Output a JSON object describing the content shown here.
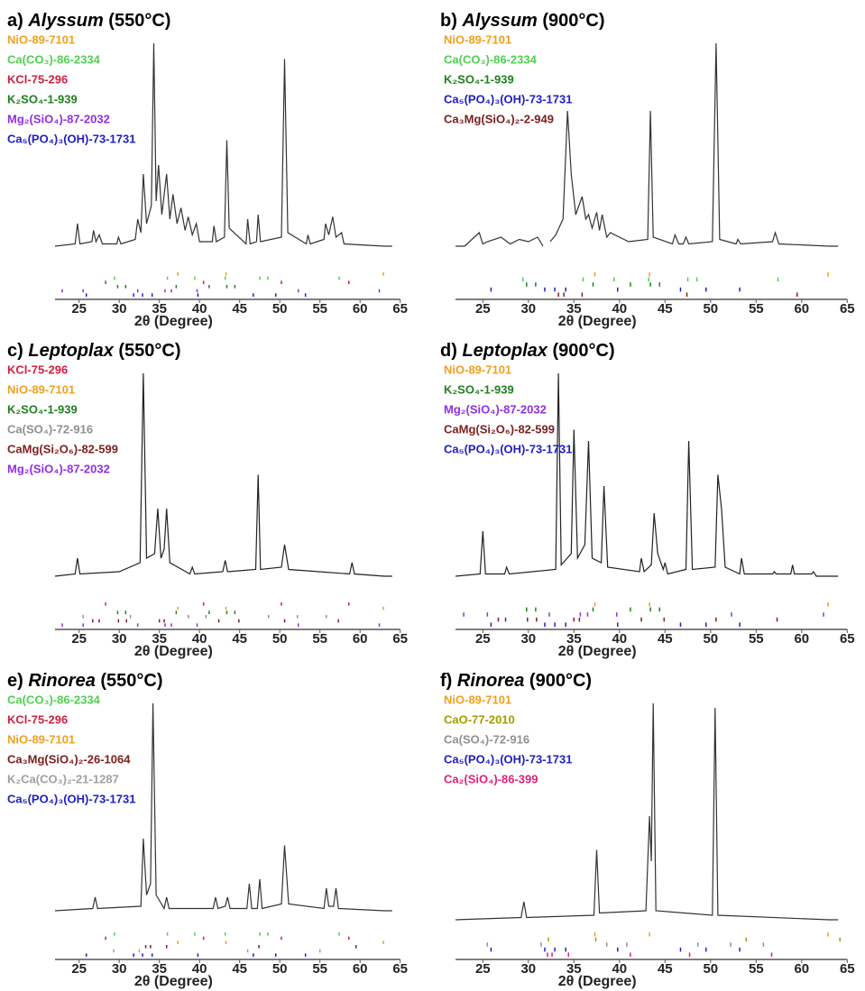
{
  "chart_data": [
    {
      "type": "line",
      "label": "a)",
      "species": "Alyssum",
      "temperature": "(550°C)",
      "xlabel": "2θ (Degree)",
      "xlim": [
        22,
        65
      ],
      "xticks": [
        25,
        30,
        35,
        40,
        45,
        50,
        55,
        60,
        65
      ],
      "ylim": [
        0,
        100
      ],
      "legend": "upper left",
      "pattern": {
        "color": "#333333",
        "x": [
          22,
          24.5,
          24.8,
          25.1,
          26.6,
          26.8,
          27.1,
          27.5,
          27.9,
          29.7,
          29.9,
          30.2,
          32,
          32.3,
          32.7,
          33,
          33.4,
          34,
          34.3,
          34.6,
          34.9,
          35.3,
          35.9,
          36.3,
          36.7,
          37.2,
          37.7,
          38.2,
          38.6,
          39.1,
          39.6,
          40,
          41.6,
          41.8,
          42.1,
          43.1,
          43.4,
          43.7,
          45.8,
          46,
          46.3,
          47.1,
          47.3,
          47.6,
          50.2,
          50.6,
          51,
          53.3,
          53.5,
          53.8,
          55.5,
          55.7,
          56.1,
          56.6,
          57,
          57.7,
          58,
          63,
          64
        ],
        "values": [
          10,
          11,
          20,
          11,
          12,
          17,
          12,
          15,
          11,
          11,
          14,
          11,
          13,
          22,
          16,
          42,
          20,
          28,
          100,
          30,
          46,
          24,
          42,
          22,
          33,
          20,
          27,
          17,
          23,
          15,
          20,
          12,
          12,
          19,
          12,
          14,
          57,
          18,
          11,
          22,
          11,
          12,
          24,
          12,
          14,
          93,
          16,
          11,
          15,
          11,
          13,
          20,
          15,
          23,
          14,
          16,
          11,
          10,
          10
        ]
      },
      "phases": [
        {
          "name": "NiO-89-7101",
          "color": "#f0a020",
          "positions": [
            37.3,
            43.3,
            62.9
          ]
        },
        {
          "name": "Ca(CO₃)-86-2334",
          "color": "#50d050",
          "positions": [
            29.4,
            36,
            39.4,
            43.2,
            47.5,
            48.5,
            57.4
          ]
        },
        {
          "name": "KCl-75-296",
          "color": "#d02040",
          "positions": [
            28.3,
            40.5,
            50.2,
            58.6
          ]
        },
        {
          "name": "K₂SO₄-1-939",
          "color": "#208020",
          "positions": [
            29.8,
            30.8,
            37.1,
            41.2,
            43.4,
            44.4
          ]
        },
        {
          "name": "Mg₂(SiO₄)-87-2032",
          "color": "#9030e0",
          "positions": [
            22.9,
            25.5,
            32.3,
            35.7,
            36.5,
            39.7,
            52.3,
            62.4
          ]
        },
        {
          "name": "Ca₅(PO₄)₃(OH)-73-1731",
          "color": "#2020c0",
          "positions": [
            25.9,
            31.8,
            32.9,
            34.1,
            39.8,
            46.7,
            49.5,
            53.2
          ]
        }
      ]
    },
    {
      "type": "line",
      "label": "b)",
      "species": "Alyssum",
      "temperature": "(900°C)",
      "xlabel": "2θ (Degree)",
      "xlim": [
        22,
        65
      ],
      "xticks": [
        25,
        30,
        35,
        40,
        45,
        50,
        55,
        60,
        65
      ],
      "ylim": [
        0,
        100
      ],
      "legend": "upper left",
      "pattern": {
        "color": "#333333",
        "x": [
          22,
          23,
          24.6,
          25,
          25.5,
          27,
          28,
          29,
          30,
          31,
          31.6,
          32,
          32.4,
          33,
          33.8,
          34.3,
          34.7,
          35.2,
          35.9,
          36.3,
          36.6,
          37,
          37.5,
          37.8,
          38.1,
          38.6,
          39,
          41,
          43.1,
          43.4,
          43.7,
          45.8,
          46.1,
          46.5,
          47,
          47.3,
          47.6,
          50.2,
          50.6,
          51,
          52.8,
          53,
          53.3,
          56.8,
          57.1,
          57.5,
          63,
          64
        ],
        "values": [
          10,
          10,
          16,
          11,
          12,
          14,
          11,
          13,
          12,
          14,
          10,
          null,
          12,
          15,
          22,
          70,
          42,
          24,
          32,
          22,
          24,
          18,
          25,
          17,
          24,
          14,
          16,
          12,
          13,
          70,
          14,
          11,
          15,
          11,
          11,
          14,
          11,
          12,
          100,
          13,
          11,
          13,
          11,
          12,
          16,
          11,
          10,
          10
        ]
      },
      "phases": [
        {
          "name": "NiO-89-7101",
          "color": "#f0a020",
          "positions": [
            37.3,
            43.3,
            62.9
          ]
        },
        {
          "name": "Ca(CO₃)-86-2334",
          "color": "#50d050",
          "positions": [
            29.4,
            36,
            39.4,
            43.2,
            47.5,
            48.5,
            57.4
          ]
        },
        {
          "name": "K₂SO₄-1-939",
          "color": "#208020",
          "positions": [
            29.8,
            30.8,
            37.1,
            41.2,
            43.4,
            44.4
          ]
        },
        {
          "name": "Ca₅(PO₄)₃(OH)-73-1731",
          "color": "#2020c0",
          "positions": [
            25.9,
            31.8,
            32.9,
            34.1,
            39.8,
            46.7,
            49.5,
            53.2
          ]
        },
        {
          "name": "Ca₃Mg(SiO₄)₂-2-949",
          "color": "#7a2020",
          "positions": [
            33.3,
            33.9,
            35.9,
            47.4,
            59.5
          ]
        }
      ]
    },
    {
      "type": "line",
      "label": "c)",
      "species": "Leptoplax",
      "temperature": "(550°C)",
      "xlabel": "2θ (Degree)",
      "xlim": [
        22,
        65
      ],
      "xticks": [
        25,
        30,
        35,
        40,
        45,
        50,
        55,
        60,
        65
      ],
      "ylim": [
        0,
        100
      ],
      "legend": "upper left",
      "pattern": {
        "color": "#222222",
        "x": [
          22,
          24.5,
          24.8,
          25.1,
          30,
          32.6,
          33,
          33.4,
          34.4,
          34.8,
          35.2,
          35.6,
          35.9,
          36.3,
          38.8,
          39.1,
          39.4,
          42.9,
          43.2,
          43.5,
          47,
          47.3,
          47.6,
          50.2,
          50.6,
          51.1,
          58.7,
          59,
          59.3,
          63,
          64
        ],
        "values": [
          10,
          11,
          18,
          11,
          12,
          16,
          100,
          18,
          20,
          40,
          18,
          22,
          40,
          16,
          11,
          14,
          11,
          12,
          17,
          12,
          13,
          55,
          13,
          14,
          24,
          13,
          11,
          16,
          11,
          10,
          10
        ]
      },
      "phases": [
        {
          "name": "KCl-75-296",
          "color": "#d02040",
          "positions": [
            28.3,
            40.5,
            50.2,
            58.6
          ]
        },
        {
          "name": "NiO-89-7101",
          "color": "#f0a020",
          "positions": [
            37.3,
            43.3,
            62.9
          ]
        },
        {
          "name": "K₂SO₄-1-939",
          "color": "#208020",
          "positions": [
            29.8,
            30.8,
            37.1,
            41.2,
            43.4,
            44.4
          ]
        },
        {
          "name": "Ca(SO₄)-72-916",
          "color": "#909090",
          "positions": [
            25.5,
            31.4,
            38.6,
            40.8,
            48.6,
            52.2,
            55.8
          ]
        },
        {
          "name": "CaMg(Si₂O₆)-82-599",
          "color": "#802020",
          "positions": [
            26.7,
            27.5,
            29.9,
            30.9,
            35,
            35.6,
            42.4,
            44.9,
            50.6,
            57.3
          ]
        },
        {
          "name": "Mg₂(SiO₄)-87-2032",
          "color": "#9030e0",
          "positions": [
            22.9,
            25.5,
            32.3,
            35.7,
            36.5,
            39.7,
            52.3,
            62.4
          ]
        }
      ]
    },
    {
      "type": "line",
      "label": "d)",
      "species": "Leptoplax",
      "temperature": "(900°C)",
      "xlabel": "2θ (Degree)",
      "xlim": [
        22,
        65
      ],
      "xticks": [
        25,
        30,
        35,
        40,
        45,
        50,
        55,
        60,
        65
      ],
      "ylim": [
        0,
        100
      ],
      "legend": "upper left",
      "pattern": {
        "color": "#222222",
        "x": [
          22,
          24.7,
          25,
          25.3,
          27.4,
          27.6,
          27.9,
          33,
          33.3,
          33.6,
          34.7,
          35,
          35.4,
          36.2,
          36.6,
          37,
          38,
          38.3,
          38.7,
          42.2,
          42.4,
          42.7,
          43.5,
          43.8,
          44.2,
          44.8,
          45,
          45.3,
          47.3,
          47.6,
          48,
          50.5,
          50.8,
          51.2,
          51.6,
          53.2,
          53.4,
          53.7,
          56.8,
          57,
          57.2,
          58.8,
          59,
          59.2,
          61.1,
          61.3,
          61.6,
          63,
          64
        ],
        "values": [
          10,
          11,
          30,
          11,
          11,
          14,
          11,
          13,
          100,
          15,
          20,
          75,
          18,
          24,
          70,
          18,
          16,
          50,
          14,
          12,
          18,
          12,
          15,
          38,
          20,
          13,
          16,
          11,
          13,
          70,
          13,
          14,
          55,
          40,
          14,
          11,
          18,
          11,
          11,
          12,
          11,
          11,
          15,
          11,
          11,
          12,
          10,
          10,
          10
        ]
      },
      "phases": [
        {
          "name": "NiO-89-7101",
          "color": "#f0a020",
          "positions": [
            37.3,
            43.3,
            62.9
          ]
        },
        {
          "name": "K₂SO₄-1-939",
          "color": "#208020",
          "positions": [
            29.8,
            30.8,
            37.1,
            41.2,
            43.4,
            44.4
          ]
        },
        {
          "name": "Mg₂(SiO₄)-87-2032",
          "color": "#9030e0",
          "positions": [
            22.9,
            25.5,
            32.3,
            35.7,
            36.5,
            39.7,
            52.3,
            62.4
          ]
        },
        {
          "name": "CaMg(Si₂O₆)-82-599",
          "color": "#802020",
          "positions": [
            26.7,
            27.5,
            29.9,
            30.9,
            35,
            35.6,
            42.4,
            44.9,
            50.6,
            57.3
          ]
        },
        {
          "name": "Ca₅(PO₄)₃(OH)-73-1731",
          "color": "#2020c0",
          "positions": [
            25.9,
            31.8,
            32.9,
            34.1,
            39.8,
            46.7,
            49.5,
            53.2
          ]
        }
      ]
    },
    {
      "type": "line",
      "label": "e)",
      "species": "Rinorea",
      "temperature": "(550°C)",
      "xlabel": "2θ (Degree)",
      "xlim": [
        22,
        65
      ],
      "xticks": [
        25,
        30,
        35,
        40,
        45,
        50,
        55,
        60,
        65
      ],
      "ylim": [
        0,
        100
      ],
      "legend": "upper left",
      "pattern": {
        "color": "#333333",
        "x": [
          22,
          26.7,
          27,
          27.3,
          32.7,
          33,
          33.4,
          33.9,
          34.2,
          34.6,
          35.6,
          35.9,
          36.2,
          41.7,
          42,
          42.3,
          43.2,
          43.5,
          43.8,
          45.9,
          46.2,
          46.5,
          47.2,
          47.5,
          47.8,
          50.2,
          50.6,
          51.1,
          55.5,
          55.8,
          56.1,
          56.7,
          57,
          57.3,
          63,
          64
        ],
        "values": [
          8,
          9,
          14,
          9,
          10,
          40,
          15,
          20,
          100,
          15,
          9,
          14,
          9,
          9,
          14,
          9,
          10,
          14,
          9,
          9,
          20,
          9,
          9,
          22,
          9,
          11,
          37,
          11,
          9,
          18,
          10,
          10,
          18,
          9,
          8,
          8
        ]
      },
      "phases": [
        {
          "name": "Ca(CO₃)-86-2334",
          "color": "#50d050",
          "positions": [
            29.4,
            36,
            39.4,
            43.2,
            47.5,
            48.5,
            57.4
          ]
        },
        {
          "name": "KCl-75-296",
          "color": "#d02040",
          "positions": [
            28.3,
            40.5,
            50.2,
            58.6
          ]
        },
        {
          "name": "NiO-89-7101",
          "color": "#f0a020",
          "positions": [
            37.3,
            43.3,
            62.9
          ]
        },
        {
          "name": "Ca₃Mg(SiO₄)₂-26-1064",
          "color": "#7a2020",
          "positions": [
            33.3,
            33.9,
            35.9,
            47.4,
            59.5
          ]
        },
        {
          "name": "K₂Ca(CO₃)₂-21-1287",
          "color": "#a0a0a0",
          "positions": [
            29.3,
            32.5,
            46,
            55
          ]
        },
        {
          "name": "Ca₅(PO₄)₃(OH)-73-1731",
          "color": "#2020c0",
          "positions": [
            25.9,
            31.8,
            32.9,
            34.1,
            39.8,
            46.7,
            49.5,
            53.2
          ]
        }
      ]
    },
    {
      "type": "line",
      "label": "f)",
      "species": "Rinorea",
      "temperature": "(900°C)",
      "xlabel": "2θ (Degree)",
      "xlim": [
        22,
        65
      ],
      "xticks": [
        25,
        30,
        35,
        40,
        45,
        50,
        55,
        60,
        65
      ],
      "ylim": [
        0,
        100
      ],
      "legend": "upper left",
      "pattern": {
        "color": "#333333",
        "x": [
          22,
          29.2,
          29.5,
          29.8,
          37.2,
          37.5,
          37.8,
          42.9,
          43.3,
          43.5,
          43.7,
          44,
          50.2,
          50.5,
          50.8,
          63,
          64
        ],
        "values": [
          4,
          5,
          12,
          5,
          6,
          35,
          7,
          8,
          50,
          30,
          100,
          8,
          6,
          98,
          6,
          4,
          4
        ]
      },
      "phases": [
        {
          "name": "NiO-89-7101",
          "color": "#f0a020",
          "positions": [
            37.3,
            43.3,
            62.9
          ]
        },
        {
          "name": "CaO-77-2010",
          "color": "#a0a000",
          "positions": [
            32.2,
            37.4,
            53.9,
            64.2
          ]
        },
        {
          "name": "Ca(SO₄)-72-916",
          "color": "#909090",
          "positions": [
            25.5,
            31.4,
            38.6,
            40.8,
            48.6,
            52.2,
            55.8
          ]
        },
        {
          "name": "Ca₅(PO₄)₃(OH)-73-1731",
          "color": "#2020c0",
          "positions": [
            25.9,
            31.8,
            32.9,
            34.1,
            39.8,
            46.7,
            49.5,
            53.2
          ]
        },
        {
          "name": "Ca₂(SiO₄)-86-399",
          "color": "#e0207a",
          "positions": [
            32.1,
            32.6,
            34.4,
            41.2,
            47.7,
            56.7
          ]
        }
      ]
    }
  ]
}
